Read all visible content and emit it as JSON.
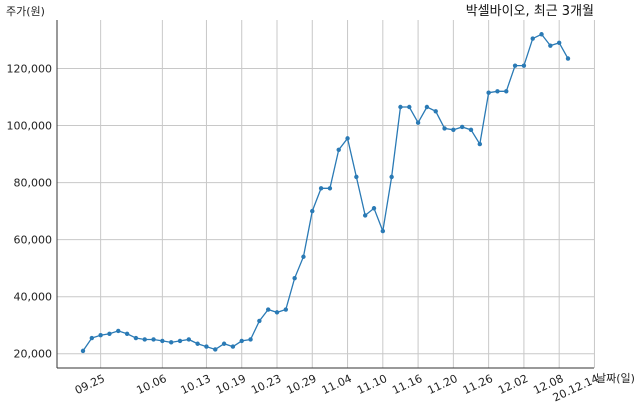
{
  "chart_data": {
    "type": "line",
    "title": "박셀바이오, 최근 3개월",
    "ylabel": "주가(원)",
    "xlabel": "날짜(일)",
    "ylim": [
      15000,
      137000
    ],
    "yticks": [
      20000,
      40000,
      60000,
      80000,
      100000,
      120000
    ],
    "ytick_labels": [
      "20,000",
      "40,000",
      "60,000",
      "80,000",
      "100,000",
      "120,000"
    ],
    "xtick_labels": [
      "09.25",
      "10.06",
      "10.13",
      "10.19",
      "10.23",
      "10.29",
      "11.04",
      "11.10",
      "11.16",
      "11.20",
      "11.26",
      "12.02",
      "12.08",
      "20.12.14"
    ],
    "xtick_index": [
      2,
      9,
      14,
      18,
      22,
      26,
      30,
      34,
      38,
      42,
      46,
      50,
      54,
      58
    ],
    "grid": true,
    "series": [
      {
        "color": "#2a7ab5",
        "values": [
          21000,
          25500,
          26500,
          27000,
          28000,
          27000,
          25500,
          25000,
          25000,
          24500,
          24000,
          24500,
          25000,
          23500,
          22500,
          21500,
          23500,
          22500,
          24500,
          25000,
          31500,
          35500,
          34500,
          35500,
          46500,
          54000,
          70000,
          78000,
          78000,
          91500,
          95500,
          82000,
          68500,
          71000,
          63000,
          82000,
          106500,
          106500,
          101000,
          106500,
          105000,
          99000,
          98500,
          99500,
          98500,
          93500,
          111500,
          112000,
          112000,
          121000,
          121000,
          130500,
          132000,
          128000,
          129000,
          123500
        ]
      }
    ]
  }
}
